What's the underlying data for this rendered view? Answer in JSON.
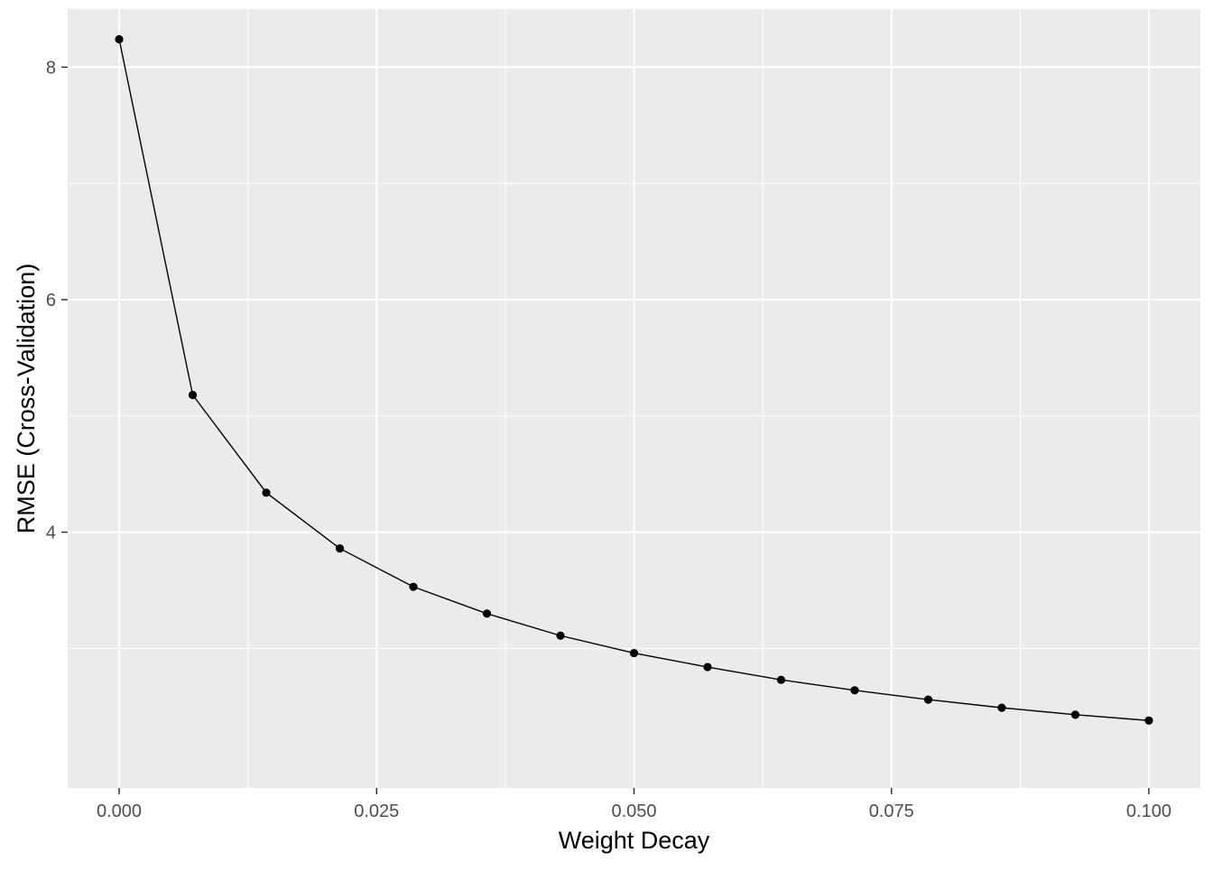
{
  "chart_data": {
    "type": "line",
    "title": "",
    "xlabel": "Weight Decay",
    "ylabel": "RMSE (Cross-Validation)",
    "x": [
      0.0,
      0.007142857,
      0.014285714,
      0.021428571,
      0.028571429,
      0.035714286,
      0.042857143,
      0.05,
      0.057142857,
      0.064285714,
      0.071428571,
      0.078571429,
      0.085714286,
      0.092857143,
      0.1
    ],
    "series": [
      {
        "values": [
          8.24,
          5.18,
          4.34,
          3.86,
          3.53,
          3.3,
          3.11,
          2.96,
          2.84,
          2.73,
          2.64,
          2.56,
          2.49,
          2.43,
          2.38
        ]
      }
    ],
    "xlim": [
      -0.005,
      0.105
    ],
    "ylim": [
      1.8,
      8.5
    ],
    "x_ticks": [
      0.0,
      0.025,
      0.05,
      0.075,
      0.1
    ],
    "x_tick_labels": [
      "0.000",
      "0.025",
      "0.050",
      "0.075",
      "0.100"
    ],
    "y_ticks": [
      4,
      6,
      8
    ],
    "y_tick_labels": [
      "4",
      "6",
      "8"
    ],
    "grid": true,
    "colors": {
      "panel": "#ebebeb",
      "grid": "#ffffff",
      "line": "#000000",
      "points": "#000000"
    }
  }
}
